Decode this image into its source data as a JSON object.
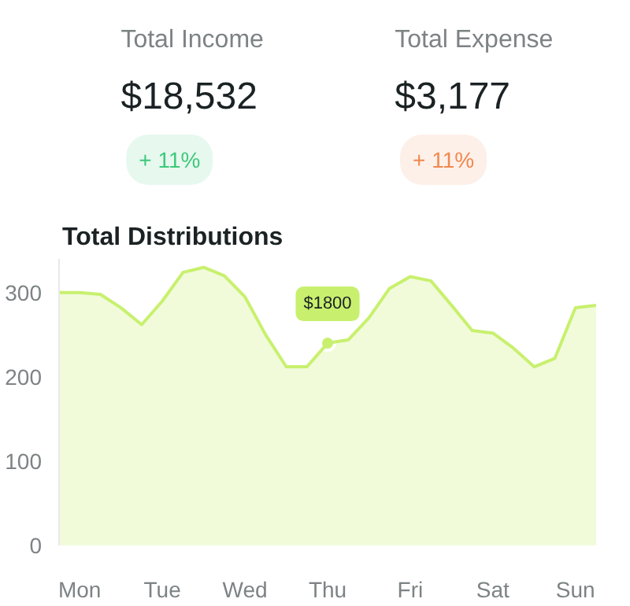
{
  "chart_data": [
    {
      "type": "other",
      "annotations": [
        "Total Income",
        "$18,532",
        "+ 11%",
        "Total Expense",
        "$3,177",
        "+ 11%"
      ],
      "colors": [
        "#3dc97a",
        "#f0884f"
      ]
    },
    {
      "type": "area",
      "title": "Total Distributions",
      "color": "#c8f06e",
      "categories": [
        null,
        "Mon",
        null,
        null,
        null,
        "Tue",
        null,
        null,
        null,
        "Wed",
        null,
        null,
        null,
        "Thu",
        null,
        null,
        null,
        "Fri",
        null,
        null,
        null,
        "Sat",
        null,
        null,
        null,
        "Sun",
        null
      ],
      "values": [
        300,
        300,
        298,
        282,
        262,
        290,
        324,
        330,
        320,
        295,
        250,
        212,
        212,
        240,
        244,
        270,
        305,
        319,
        314,
        285,
        255,
        252,
        234,
        212,
        222,
        282,
        285
      ],
      "ylim": [
        0,
        340
      ],
      "yticks": [
        0,
        100,
        200,
        300
      ],
      "grid": false,
      "annotations": [
        {
          "text": "$1800",
          "x": "Thu",
          "y": 240
        }
      ]
    }
  ]
}
